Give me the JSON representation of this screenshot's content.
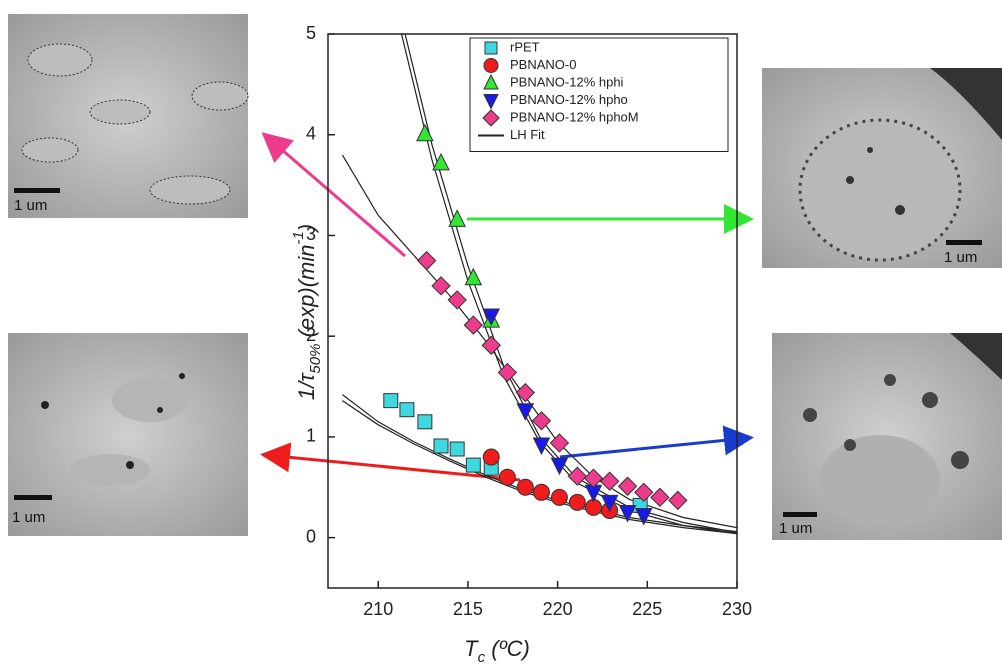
{
  "chart_data": {
    "type": "scatter",
    "x_label_parts": [
      "T",
      "c",
      " (ºC)"
    ],
    "y_label_parts": [
      "1/τ",
      "50%",
      " (exp)(min",
      "-1",
      ")"
    ],
    "xlim": [
      207.2,
      230
    ],
    "ylim": [
      -0.5,
      5
    ],
    "xticks": [
      210,
      215,
      220,
      225,
      230
    ],
    "yticks": [
      0,
      1,
      2,
      3,
      4,
      5
    ],
    "series": [
      {
        "name": "rPET",
        "color": "#40d8e0",
        "marker": "square",
        "x": [
          210.7,
          211.6,
          212.6,
          213.5,
          214.4,
          215.3,
          216.3,
          224.6
        ],
        "values": [
          1.36,
          1.27,
          1.15,
          0.91,
          0.88,
          0.72,
          0.69,
          0.32
        ]
      },
      {
        "name": "PBNANO-0",
        "color": "#ee1c1c",
        "marker": "circle",
        "x": [
          216.3,
          217.2,
          218.2,
          219.1,
          220.1,
          221.1,
          222.0,
          222.9
        ],
        "values": [
          0.8,
          0.6,
          0.5,
          0.45,
          0.4,
          0.35,
          0.3,
          0.27
        ]
      },
      {
        "name": "PBNANO-12% hphi",
        "color": "#33e633",
        "marker": "triangle",
        "x": [
          212.6,
          213.5,
          214.4,
          215.3,
          216.3
        ],
        "values": [
          4.01,
          3.72,
          3.16,
          2.58,
          2.16
        ]
      },
      {
        "name": "PBNANO-12% hpho",
        "color": "#1a1ae6",
        "marker": "triangle-down",
        "x": [
          216.3,
          218.2,
          219.1,
          220.1,
          222.0,
          222.9,
          223.9,
          224.8
        ],
        "values": [
          2.2,
          1.26,
          0.92,
          0.72,
          0.45,
          0.35,
          0.25,
          0.22
        ]
      },
      {
        "name": "PBNANO-12% hphoM",
        "color": "#ee3c8c",
        "marker": "diamond",
        "x": [
          212.7,
          213.5,
          214.4,
          215.3,
          216.3,
          217.2,
          218.2,
          219.1,
          220.1,
          221.1,
          222.0,
          222.9,
          223.9,
          224.8,
          225.7,
          226.7
        ],
        "values": [
          2.75,
          2.5,
          2.36,
          2.11,
          1.91,
          1.64,
          1.44,
          1.16,
          0.94,
          0.61,
          0.59,
          0.56,
          0.51,
          0.45,
          0.4,
          0.37
        ]
      },
      {
        "name": "LH Fit",
        "color": "#222222",
        "marker": "line",
        "curves": [
          {
            "x": [
              211.5,
              213,
              215,
              217,
              219,
              221,
              224,
              227,
              230
            ],
            "values": [
              5,
              3.9,
              2.7,
              1.7,
              1.0,
              0.6,
              0.3,
              0.15,
              0.05
            ]
          },
          {
            "x": [
              211.3,
              213,
              215,
              217,
              219,
              221,
              224,
              227,
              230
            ],
            "values": [
              5,
              3.75,
              2.55,
              1.6,
              0.95,
              0.55,
              0.27,
              0.12,
              0.04
            ]
          },
          {
            "x": [
              208,
              210,
              212,
              214,
              216,
              218,
              220,
              222,
              224,
              227,
              230
            ],
            "values": [
              3.8,
              3.2,
              2.8,
              2.4,
              1.95,
              1.45,
              0.95,
              0.6,
              0.38,
              0.2,
              0.1
            ]
          },
          {
            "x": [
              208,
              210,
              212,
              214,
              216,
              218,
              220,
              222,
              224,
              227,
              230
            ],
            "values": [
              1.42,
              1.15,
              0.95,
              0.78,
              0.62,
              0.48,
              0.37,
              0.28,
              0.2,
              0.12,
              0.06
            ]
          },
          {
            "x": [
              208,
              210,
              212,
              214,
              216,
              218,
              220,
              222,
              224,
              227,
              230
            ],
            "values": [
              1.36,
              1.12,
              0.93,
              0.76,
              0.6,
              0.46,
              0.35,
              0.26,
              0.18,
              0.1,
              0.04
            ]
          }
        ]
      }
    ]
  },
  "images": [
    {
      "scale_label": "1 um"
    },
    {
      "scale_label": "1 um"
    },
    {
      "scale_label": "1 um"
    },
    {
      "scale_label": "1 um"
    }
  ]
}
